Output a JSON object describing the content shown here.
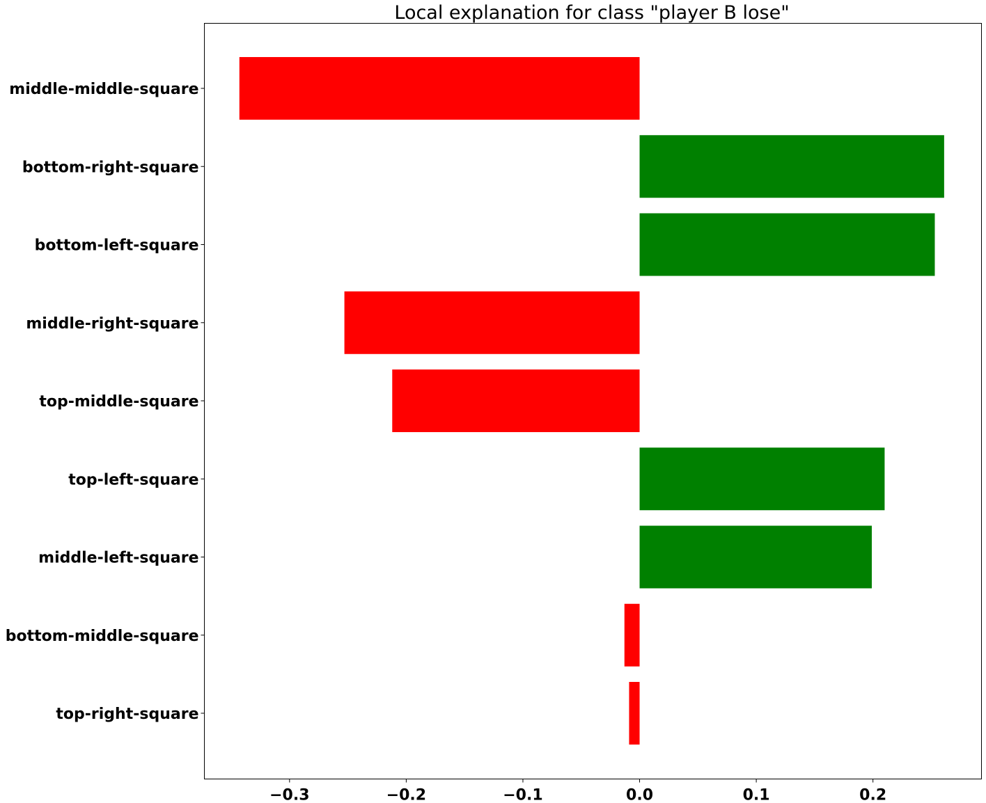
{
  "chart_data": {
    "type": "bar",
    "orientation": "horizontal",
    "title": "Local explanation for class \"player B lose\"",
    "xlabel": "",
    "ylabel": "",
    "categories": [
      "middle-middle-square",
      "bottom-right-square",
      "bottom-left-square",
      "middle-right-square",
      "top-middle-square",
      "top-left-square",
      "middle-left-square",
      "bottom-middle-square",
      "top-right-square"
    ],
    "values": [
      -0.343,
      0.261,
      0.253,
      -0.253,
      -0.212,
      0.21,
      0.199,
      -0.013,
      -0.009
    ],
    "colors": {
      "positive": "#008000",
      "negative": "#ff0000"
    },
    "xlim": [
      -0.373,
      0.293
    ],
    "xticks": [
      -0.3,
      -0.2,
      -0.1,
      0.0,
      0.1,
      0.2
    ],
    "xtick_labels": [
      "−0.3",
      "−0.2",
      "−0.1",
      "0.0",
      "0.1",
      "0.2"
    ],
    "grid": false,
    "legend": "none"
  }
}
